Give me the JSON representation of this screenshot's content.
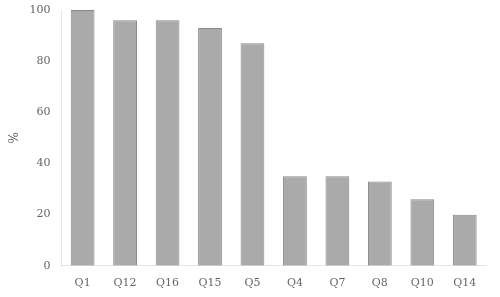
{
  "chart_data": {
    "type": "bar",
    "ylabel": "%",
    "categories": [
      "Q1",
      "Q12",
      "Q16",
      "Q15",
      "Q5",
      "Q4",
      "Q7",
      "Q8",
      "Q10",
      "Q14"
    ],
    "values": [
      100,
      96,
      96,
      93,
      87,
      35,
      35,
      33,
      26,
      20
    ],
    "color": "#aaaaaa",
    "ylim": [
      0,
      100
    ],
    "yticks": [
      0,
      20,
      40,
      60,
      80,
      100
    ],
    "grid": false
  }
}
